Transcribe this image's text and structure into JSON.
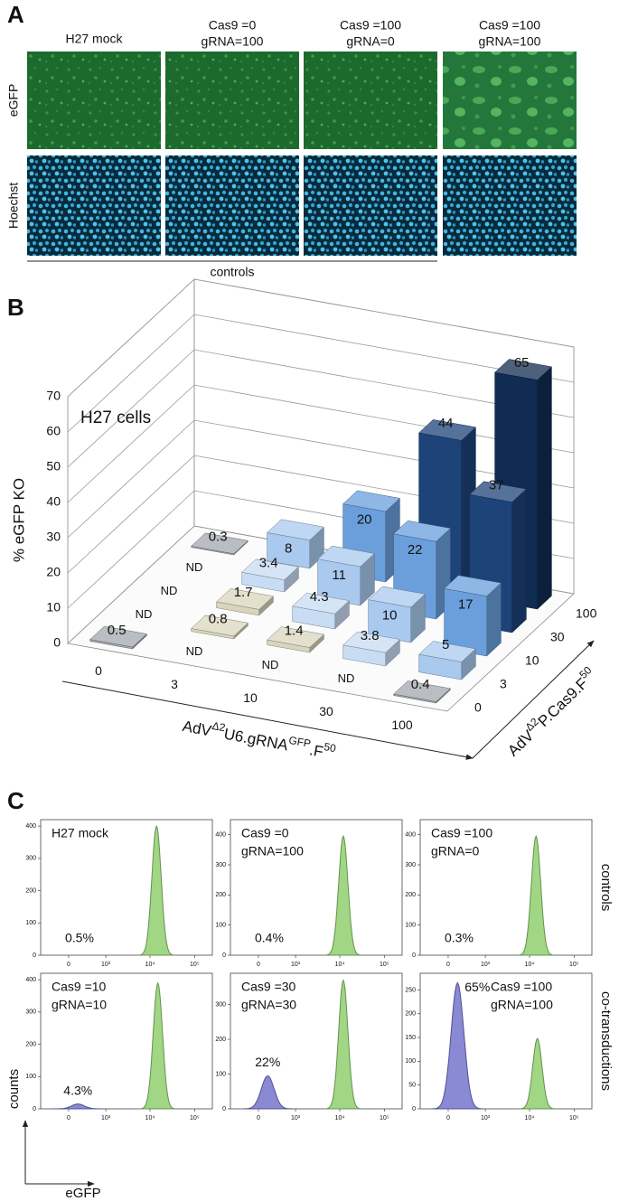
{
  "panel_labels": [
    "A",
    "B",
    "C"
  ],
  "panel_a": {
    "columns": [
      [
        "H27 mock"
      ],
      [
        "Cas9 =0",
        "gRNA=100"
      ],
      [
        "Cas9 =100",
        "gRNA=0"
      ],
      [
        "Cas9 =100",
        "gRNA=100"
      ]
    ],
    "rows": [
      "eGFP",
      "Hoechst"
    ],
    "bracket_label": "controls"
  },
  "panel_c": {
    "row_labels": [
      "controls",
      "co-transductions"
    ],
    "y_label": "counts",
    "x_label": "eGFP"
  },
  "chart_data": [
    {
      "type": "bar3d",
      "title": "H27 cells",
      "y_label": "% eGFP KO",
      "x_label_parts": [
        {
          "text": "AdV"
        },
        {
          "text": "Δ2",
          "sup": true
        },
        {
          "text": "U6.gRNA"
        },
        {
          "text": "GFP",
          "sup": true
        },
        {
          "text": ".F"
        },
        {
          "text": "50",
          "sup": true
        }
      ],
      "z_label_parts": [
        {
          "text": "AdV"
        },
        {
          "text": "Δ2",
          "sup": true
        },
        {
          "text": "P.Cas9.F"
        },
        {
          "text": "50",
          "sup": true
        }
      ],
      "categories": [
        "0",
        "3",
        "10",
        "30",
        "100"
      ],
      "ylim": [
        0,
        70
      ],
      "yticks": [
        0,
        10,
        20,
        30,
        40,
        50,
        60,
        70
      ],
      "series": [
        {
          "name": "0",
          "values": [
            0.5,
            null,
            null,
            null,
            0.4
          ],
          "value_labels": [
            "0.5",
            "ND",
            "ND",
            "ND",
            "0.4"
          ],
          "colors": [
            "#a3a8ae",
            null,
            null,
            null,
            "#a3a8ae"
          ]
        },
        {
          "name": "3",
          "values": [
            null,
            0.8,
            1.4,
            3.8,
            5
          ],
          "value_labels": [
            "ND",
            "0.8",
            "1.4",
            "3.8",
            "5"
          ],
          "colors": [
            null,
            "#d9d5bd",
            "#d9d5bd",
            "#c8dcf3",
            "#a9c9ef"
          ]
        },
        {
          "name": "10",
          "values": [
            null,
            1.7,
            4.3,
            10,
            17
          ],
          "value_labels": [
            "ND",
            "1.7",
            "4.3",
            "10",
            "17"
          ],
          "colors": [
            null,
            "#d9d5bd",
            "#c8dcf3",
            "#a9c9ef",
            "#6a9fdc"
          ]
        },
        {
          "name": "30",
          "values": [
            null,
            3.4,
            11,
            22,
            37
          ],
          "value_labels": [
            "ND",
            "3.4",
            "11",
            "22",
            "37"
          ],
          "colors": [
            null,
            "#c8dcf3",
            "#a9c9ef",
            "#6a9fdc",
            "#1d4379"
          ]
        },
        {
          "name": "100",
          "values": [
            0.3,
            8,
            20,
            44,
            65
          ],
          "value_labels": [
            "0.3",
            "8",
            "20",
            "44",
            "65"
          ],
          "colors": [
            "#a3a8ae",
            "#a9c9ef",
            "#6a9fdc",
            "#1d4379",
            "#112c52"
          ]
        }
      ]
    },
    {
      "type": "flow_histogram",
      "annotation": [
        "H27 mock"
      ],
      "percent_label": "0.5%",
      "xscale": "asinh",
      "xlim": [
        -600,
        250000
      ],
      "xticks": [
        0,
        {
          "value": 1000,
          "label": "10³"
        },
        {
          "value": 10000,
          "label": "10⁴"
        },
        {
          "value": 100000,
          "label": "10⁵"
        }
      ],
      "ylim": [
        0,
        420
      ],
      "yticks": [
        0,
        100,
        200,
        300,
        400
      ],
      "peaks": [
        {
          "center": 14000,
          "height": 400,
          "color": "#8fcf6f"
        }
      ]
    },
    {
      "type": "flow_histogram",
      "annotation": [
        "Cas9 =0",
        "gRNA=100"
      ],
      "percent_label": "0.4%",
      "xscale": "asinh",
      "xlim": [
        -600,
        250000
      ],
      "xticks": [
        0,
        {
          "value": 1000,
          "label": "10³"
        },
        {
          "value": 10000,
          "label": "10⁴"
        },
        {
          "value": 100000,
          "label": "10⁵"
        }
      ],
      "ylim": [
        0,
        450
      ],
      "yticks": [
        0,
        100,
        200,
        300,
        400
      ],
      "peaks": [
        {
          "center": 12000,
          "height": 395,
          "color": "#8fcf6f"
        }
      ]
    },
    {
      "type": "flow_histogram",
      "annotation": [
        "Cas9 =100",
        "gRNA=0"
      ],
      "percent_label": "0.3%",
      "xscale": "asinh",
      "xlim": [
        -600,
        250000
      ],
      "xticks": [
        0,
        {
          "value": 1000,
          "label": "10³"
        },
        {
          "value": 10000,
          "label": "10⁴"
        },
        {
          "value": 100000,
          "label": "10⁵"
        }
      ],
      "ylim": [
        0,
        450
      ],
      "yticks": [
        0,
        100,
        200,
        300,
        400
      ],
      "peaks": [
        {
          "center": 14000,
          "height": 395,
          "color": "#8fcf6f"
        }
      ]
    },
    {
      "type": "flow_histogram",
      "annotation": [
        "Cas9 =10",
        "gRNA=10"
      ],
      "percent_label": "4.3%",
      "xscale": "asinh",
      "xlim": [
        -600,
        250000
      ],
      "xticks": [
        0,
        {
          "value": 1000,
          "label": "10³"
        },
        {
          "value": 10000,
          "label": "10⁴"
        },
        {
          "value": 100000,
          "label": "10⁵"
        }
      ],
      "ylim": [
        0,
        420
      ],
      "yticks": [
        0,
        100,
        200,
        300,
        400
      ],
      "peaks": [
        {
          "center": 150,
          "height": 15,
          "color": "#7474cc"
        },
        {
          "center": 15000,
          "height": 390,
          "color": "#8fcf6f"
        }
      ]
    },
    {
      "type": "flow_histogram",
      "annotation": [
        "Cas9 =30",
        "gRNA=30"
      ],
      "percent_label": "22%",
      "xscale": "asinh",
      "xlim": [
        -600,
        250000
      ],
      "xticks": [
        0,
        {
          "value": 1000,
          "label": "10³"
        },
        {
          "value": 10000,
          "label": "10⁴"
        },
        {
          "value": 100000,
          "label": "10⁵"
        }
      ],
      "ylim": [
        0,
        390
      ],
      "yticks": [
        0,
        100,
        200,
        300
      ],
      "peaks": [
        {
          "center": 150,
          "height": 95,
          "color": "#7474cc"
        },
        {
          "center": 12000,
          "height": 370,
          "color": "#8fcf6f"
        }
      ]
    },
    {
      "type": "flow_histogram",
      "annotation": [
        "Cas9 =100",
        "gRNA=100"
      ],
      "percent_label": "65%",
      "xscale": "asinh",
      "xlim": [
        -600,
        250000
      ],
      "xticks": [
        0,
        {
          "value": 1000,
          "label": "10³"
        },
        {
          "value": 10000,
          "label": "10⁴"
        },
        {
          "value": 100000,
          "label": "10⁵"
        }
      ],
      "ylim": [
        0,
        285
      ],
      "yticks": [
        0,
        50,
        100,
        150,
        200,
        250
      ],
      "peaks": [
        {
          "center": 150,
          "height": 265,
          "color": "#7474cc"
        },
        {
          "center": 15000,
          "height": 148,
          "color": "#8fcf6f"
        }
      ]
    }
  ]
}
